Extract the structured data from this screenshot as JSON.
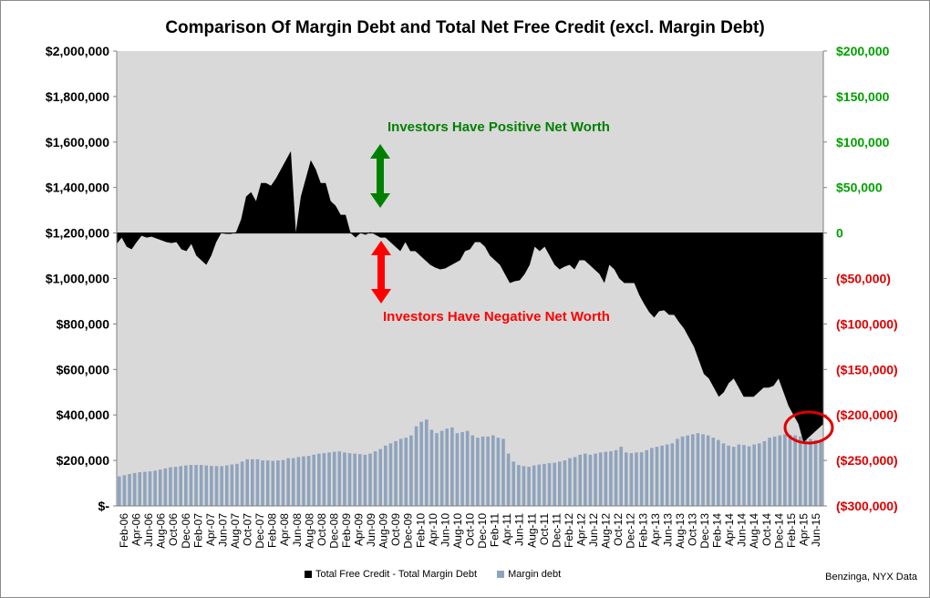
{
  "chart_data": {
    "type": "bar+area",
    "title": "Comparison Of Margin Debt and Total Net Free Credit (excl. Margin Debt)",
    "left_axis": {
      "ylim": [
        0,
        2000000
      ],
      "tick_labels": [
        "$-",
        "$200,000",
        "$400,000",
        "$600,000",
        "$800,000",
        "$1,000,000",
        "$1,200,000",
        "$1,400,000",
        "$1,600,000",
        "$1,800,000",
        "$2,000,000"
      ]
    },
    "right_axis": {
      "ylim": [
        -300000,
        200000
      ],
      "tick_labels": [
        "($300,000)",
        "($250,000)",
        "($200,000)",
        "($150,000)",
        "($100,000)",
        "($50,000)",
        "0",
        "$50,000",
        "$100,000",
        "$150,000",
        "$200,000"
      ],
      "positive_color": "#00a000",
      "negative_color": "#e00000"
    },
    "x_tick_labels": [
      "Feb-06",
      "Apr-06",
      "Jun-06",
      "Aug-06",
      "Oct-06",
      "Dec-06",
      "Feb-07",
      "Apr-07",
      "Jun-07",
      "Aug-07",
      "Oct-07",
      "Dec-07",
      "Feb-08",
      "Apr-08",
      "Jun-08",
      "Aug-08",
      "Oct-08",
      "Dec-08",
      "Feb-09",
      "Apr-09",
      "Jun-09",
      "Aug-09",
      "Oct-09",
      "Dec-09",
      "Feb-10",
      "Apr-10",
      "Jun-10",
      "Aug-10",
      "Oct-10",
      "Dec-10",
      "Feb-11",
      "Apr-11",
      "Jun-11",
      "Aug-11",
      "Oct-11",
      "Dec-11",
      "Feb-12",
      "Apr-12",
      "Jun-12",
      "Aug-12",
      "Oct-12",
      "Dec-12",
      "Feb-13",
      "Apr-13",
      "Jun-13",
      "Aug-13",
      "Oct-13",
      "Dec-13",
      "Feb-14",
      "Apr-14",
      "Jun-14",
      "Aug-14",
      "Oct-14",
      "Dec-14",
      "Feb-15",
      "Apr-15",
      "Jun-15"
    ],
    "series": [
      {
        "name": "Total Free Credit - Total Margin Debt",
        "axis": "right",
        "kind": "area",
        "color": "#000000",
        "values": [
          -12000,
          -5000,
          -15000,
          -18000,
          -10000,
          -3000,
          -5000,
          -4000,
          -6000,
          -8000,
          -10000,
          -11000,
          -10000,
          -18000,
          -20000,
          -12000,
          -25000,
          -30000,
          -35000,
          -25000,
          -10000,
          0,
          -1000,
          -1000,
          1000,
          15000,
          40000,
          45000,
          35000,
          55000,
          55000,
          52000,
          60000,
          70000,
          80000,
          90000,
          1000,
          40000,
          60000,
          80000,
          70000,
          55000,
          55000,
          35000,
          30000,
          20000,
          20000,
          0,
          -5000,
          0,
          -2000,
          1000,
          -2000,
          -5000,
          -5000,
          -10000,
          -15000,
          -20000,
          -10000,
          -20000,
          -20000,
          -25000,
          -30000,
          -35000,
          -38000,
          -40000,
          -39000,
          -36000,
          -33000,
          -30000,
          -20000,
          -18000,
          -10000,
          -10000,
          -15000,
          -25000,
          -30000,
          -35000,
          -45000,
          -55000,
          -53000,
          -52000,
          -45000,
          -35000,
          -15000,
          -20000,
          -15000,
          -25000,
          -35000,
          -40000,
          -37000,
          -35000,
          -40000,
          -30000,
          -30000,
          -35000,
          -40000,
          -45000,
          -55000,
          -35000,
          -40000,
          -50000,
          -55000,
          -55000,
          -55000,
          -68000,
          -78000,
          -87000,
          -93000,
          -86000,
          -85000,
          -90000,
          -90000,
          -98000,
          -105000,
          -115000,
          -125000,
          -140000,
          -155000,
          -160000,
          -170000,
          -180000,
          -175000,
          -165000,
          -160000,
          -170000,
          -180000,
          -180000,
          -180000,
          -175000,
          -170000,
          -170000,
          -168000,
          -160000,
          -175000,
          -190000,
          -200000,
          -210000,
          -230000,
          -225000,
          -220000,
          -215000,
          -210000
        ]
      },
      {
        "name": "Margin debt",
        "axis": "left",
        "kind": "bar",
        "color": "#8ea3bd",
        "values": [
          130000,
          135000,
          140000,
          145000,
          148000,
          150000,
          152000,
          155000,
          160000,
          165000,
          170000,
          172000,
          175000,
          178000,
          180000,
          180000,
          180000,
          178000,
          176000,
          175000,
          175000,
          178000,
          182000,
          185000,
          195000,
          205000,
          205000,
          205000,
          200000,
          200000,
          198000,
          200000,
          202000,
          210000,
          210000,
          215000,
          218000,
          220000,
          225000,
          230000,
          232000,
          235000,
          238000,
          240000,
          235000,
          232000,
          230000,
          228000,
          225000,
          230000,
          240000,
          250000,
          265000,
          275000,
          285000,
          295000,
          300000,
          310000,
          350000,
          370000,
          380000,
          335000,
          320000,
          330000,
          340000,
          345000,
          320000,
          325000,
          330000,
          310000,
          300000,
          305000,
          305000,
          310000,
          300000,
          295000,
          230000,
          195000,
          180000,
          175000,
          172000,
          178000,
          182000,
          185000,
          188000,
          190000,
          195000,
          200000,
          210000,
          215000,
          225000,
          230000,
          225000,
          230000,
          235000,
          238000,
          240000,
          245000,
          260000,
          235000,
          232000,
          235000,
          236000,
          245000,
          255000,
          260000,
          265000,
          270000,
          275000,
          295000,
          305000,
          310000,
          315000,
          320000,
          315000,
          310000,
          300000,
          290000,
          275000,
          265000,
          260000,
          270000,
          268000,
          262000,
          270000,
          275000,
          285000,
          300000,
          305000,
          310000,
          315000,
          312000,
          310000,
          305000,
          300000,
          295000,
          290000,
          285000
        ]
      }
    ],
    "annotations": {
      "positive": "Investors Have Positive Net Worth",
      "negative": "Investors Have Negative Net Worth"
    },
    "legend_position": "bottom",
    "grid": false,
    "plot_background": "#d9d9d9",
    "highlight_color": "#e00000"
  },
  "source": "Benzinga, NYX Data"
}
